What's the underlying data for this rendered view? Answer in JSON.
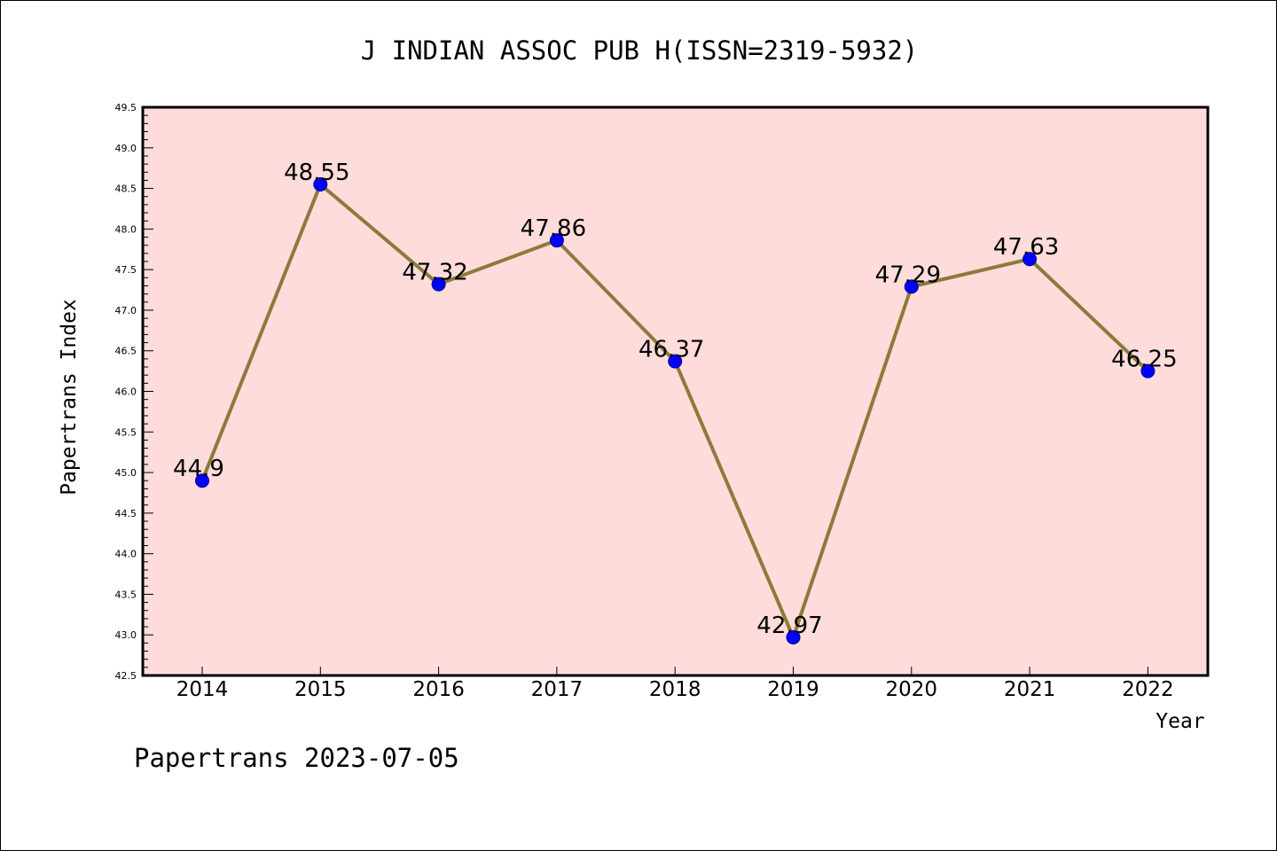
{
  "chart_data": {
    "type": "line",
    "title": "J INDIAN ASSOC PUB H(ISSN=2319-5932)",
    "xlabel": "Year",
    "ylabel": "Papertrans Index",
    "categories": [
      "2014",
      "2015",
      "2016",
      "2017",
      "2018",
      "2019",
      "2020",
      "2021",
      "2022"
    ],
    "series": [
      {
        "values": [
          44.9,
          48.55,
          47.32,
          47.86,
          46.37,
          42.97,
          47.29,
          47.63,
          46.25
        ],
        "labels": [
          "44.9",
          "48.55",
          "47.32",
          "47.86",
          "46.37",
          "42.97",
          "47.29",
          "47.63",
          "46.25"
        ]
      }
    ],
    "ylim": [
      42.5,
      49.5
    ],
    "yticks": [
      "42.5",
      "43.0",
      "43.5",
      "44.0",
      "44.5",
      "45.0",
      "45.5",
      "46.0",
      "46.5",
      "47.0",
      "47.5",
      "48.0",
      "48.5",
      "49.0",
      "49.5"
    ],
    "grid": false,
    "colors": {
      "plot_background": "#fddcdb",
      "line": "#8b7b3a",
      "marker": "#0000ff"
    }
  },
  "footer": "Papertrans 2023-07-05"
}
